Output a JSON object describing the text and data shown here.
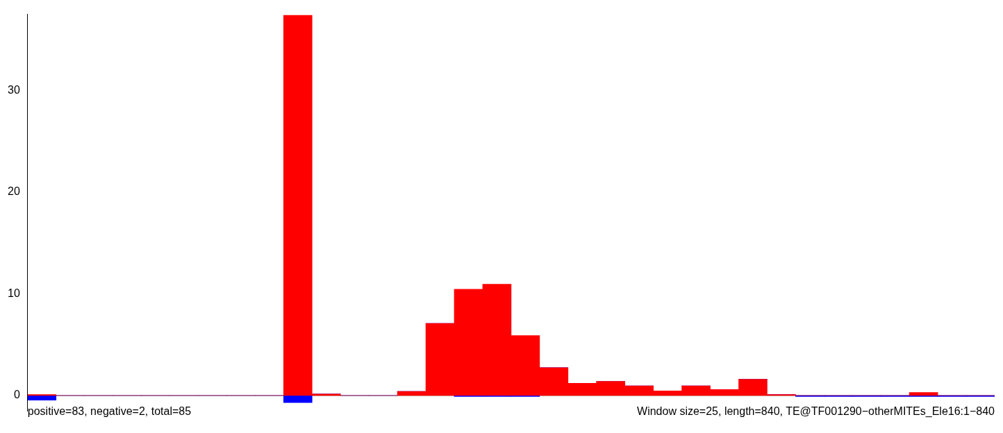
{
  "chart_data": {
    "type": "bar",
    "stacked": true,
    "categories": [
      null,
      null,
      null,
      null,
      null,
      null,
      null,
      null,
      null,
      null,
      null,
      null,
      null,
      null,
      null,
      null,
      null,
      null,
      null,
      null,
      null,
      null,
      null,
      null,
      null,
      null,
      null,
      null,
      null,
      null,
      null,
      null,
      null,
      null
    ],
    "series": [
      {
        "color": "#ff0000",
        "values": [
          0.1,
          0,
          0,
          0,
          0,
          0,
          0,
          0,
          0,
          37.4,
          0.15,
          0,
          0,
          0.4,
          7.1,
          10.45,
          10.95,
          5.9,
          2.75,
          1.2,
          1.4,
          0.95,
          0.45,
          0.95,
          0.6,
          1.6,
          0.1,
          0,
          0,
          0,
          0,
          0.3,
          0,
          0
        ]
      },
      {
        "color": "#0000ff",
        "values": [
          -0.45,
          0,
          0,
          0,
          0,
          0,
          0,
          0,
          0,
          -0.7,
          0,
          0,
          0,
          0,
          0,
          -0.1,
          -0.1,
          -0.1,
          0,
          0,
          0,
          0,
          0,
          0,
          0,
          0,
          0,
          -0.1,
          -0.1,
          -0.1,
          -0.1,
          -0.1,
          -0.1,
          -0.1
        ]
      }
    ],
    "ylim": [
      -1.5,
      37.5
    ],
    "yticks": [
      0,
      10,
      20,
      30
    ],
    "grid": false,
    "legend": false,
    "tick_labels": "y",
    "ref_lines": [
      {
        "axis": "y",
        "value": 0,
        "color": "#808080"
      }
    ],
    "annotations": [
      "positive=83, negative=2, total=85",
      "Window size=25, length=840, TE@TF001290−otherMITEs_Ele16:1−840"
    ]
  }
}
